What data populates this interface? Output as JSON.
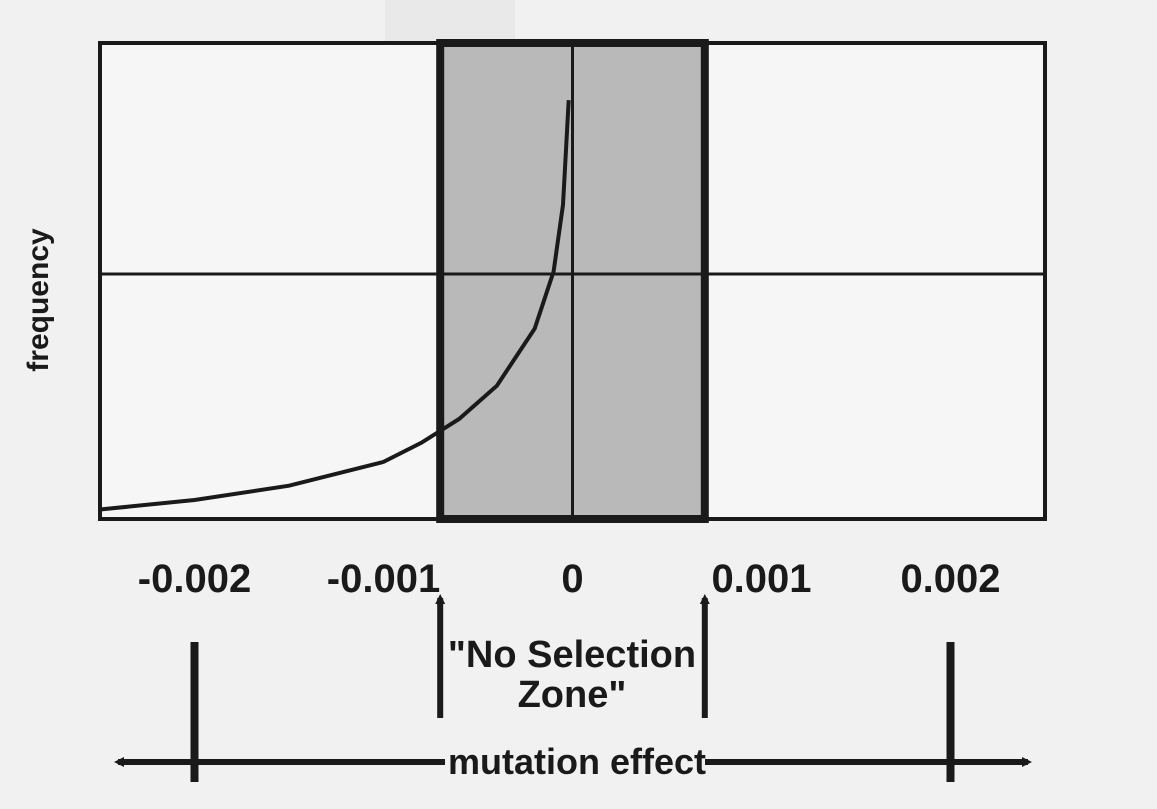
{
  "chart_data": {
    "type": "line",
    "title": "",
    "xlabel": "mutation effect",
    "ylabel": "frequency",
    "xlim": [
      -0.0025,
      0.0025
    ],
    "ylim": [
      0,
      1
    ],
    "ticks": [
      -0.002,
      -0.001,
      0,
      0.001,
      0.002
    ],
    "tick_labels": [
      "-0.002",
      "-0.001",
      "0",
      "0.001",
      "0.002"
    ],
    "grid": true,
    "series": [
      {
        "name": "frequency",
        "x": [
          -0.0025,
          -0.002,
          -0.0015,
          -0.001,
          -0.0008,
          -0.0006,
          -0.0004,
          -0.0002,
          -0.0001,
          -5e-05,
          -2e-05
        ],
        "y": [
          0.02,
          0.04,
          0.07,
          0.12,
          0.16,
          0.21,
          0.28,
          0.4,
          0.52,
          0.66,
          0.88
        ]
      }
    ],
    "shaded_region": {
      "label": "\"No Selection Zone\"",
      "x_range": [
        -0.0007,
        0.0007
      ]
    },
    "annotations": {
      "zone_line1": "\"No Selection",
      "zone_line2": "Zone\"",
      "axis_label": "mutation effect"
    }
  }
}
